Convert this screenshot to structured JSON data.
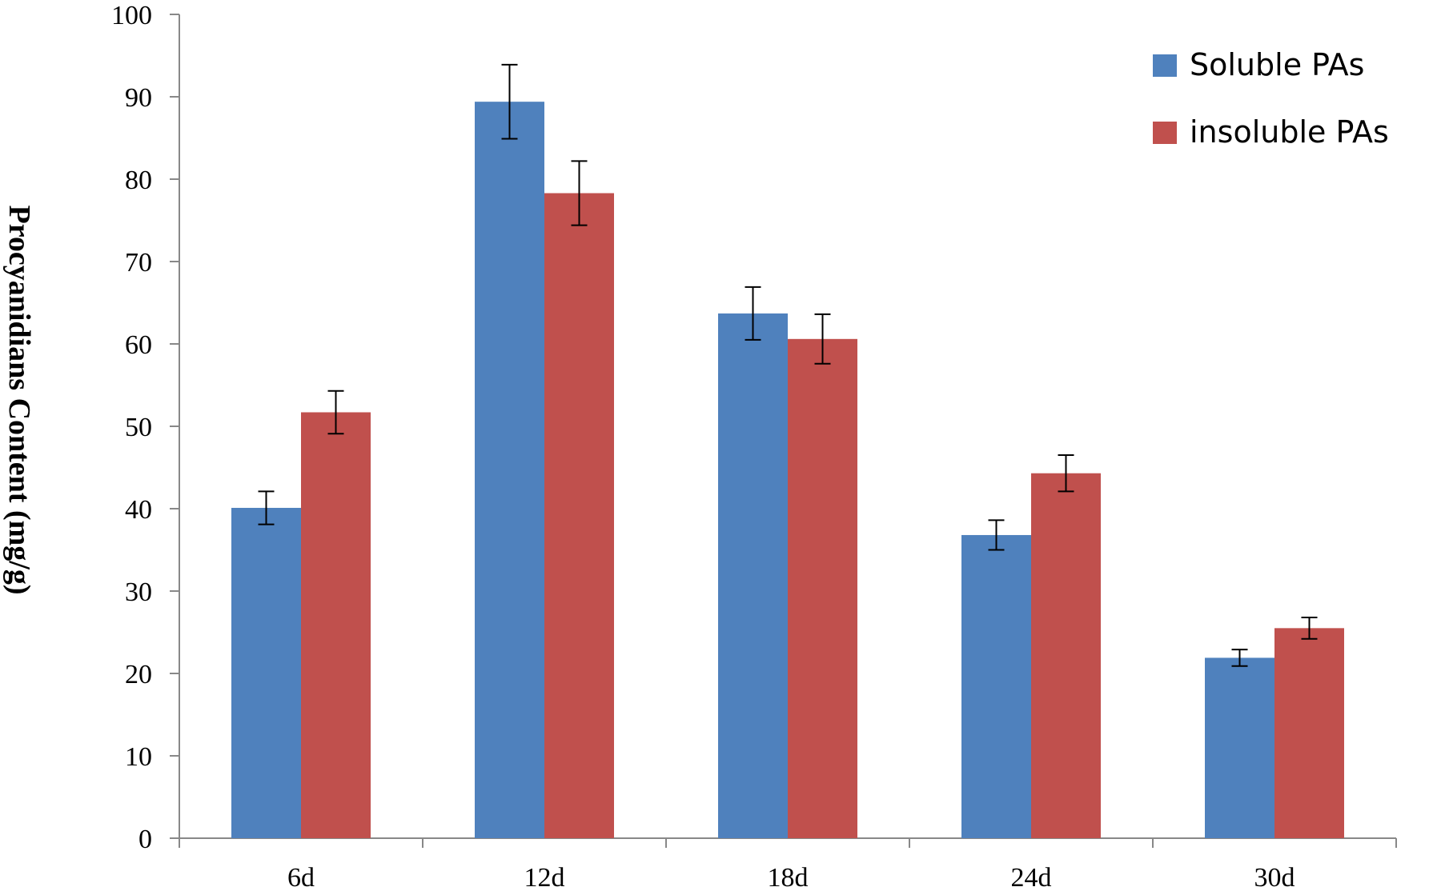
{
  "chart_data": {
    "type": "bar",
    "ylabel": "Procyanidians Content (mg/g)",
    "xlabel": "",
    "categories": [
      "6d",
      "12d",
      "18d",
      "24d",
      "30d"
    ],
    "ylim": [
      0,
      100
    ],
    "yticks": [
      0,
      10,
      20,
      30,
      40,
      50,
      60,
      70,
      80,
      90,
      100
    ],
    "series": [
      {
        "name": "Soluble PAs",
        "color": "#4F81BD",
        "values": [
          40.1,
          89.4,
          63.7,
          36.8,
          21.9
        ],
        "errors": [
          2.0,
          4.5,
          3.2,
          1.8,
          1.0
        ]
      },
      {
        "name": "insoluble PAs",
        "color": "#C0504D",
        "values": [
          51.7,
          78.3,
          60.6,
          44.3,
          25.5
        ],
        "errors": [
          2.6,
          3.9,
          3.0,
          2.2,
          1.3
        ]
      }
    ],
    "legend": "top-right",
    "grid": false
  }
}
